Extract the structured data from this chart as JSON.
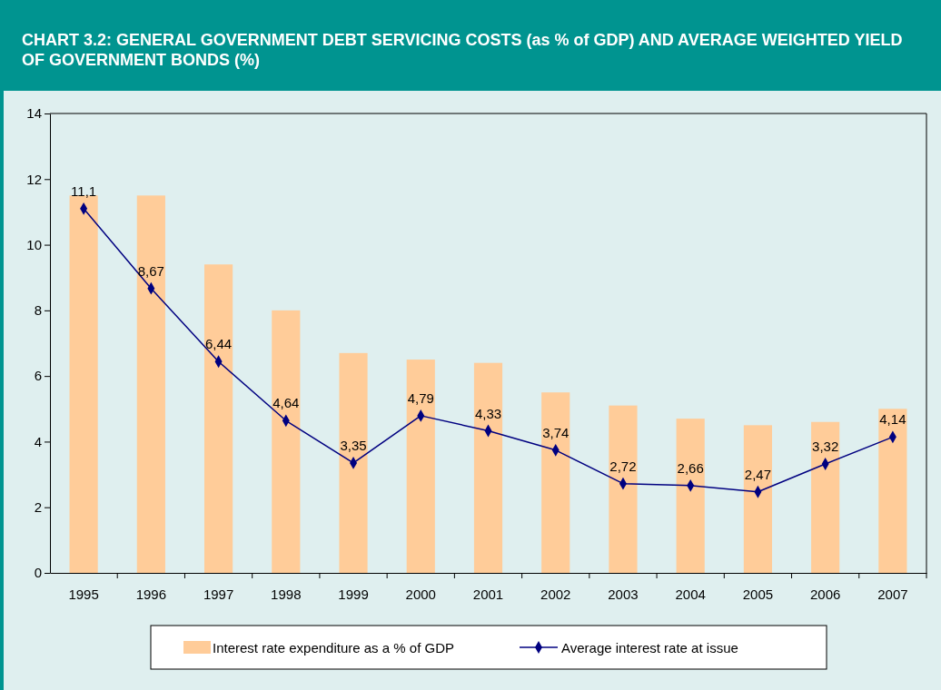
{
  "chart_data": {
    "type": "bar",
    "title": "CHART 3.2: GENERAL GOVERNMENT DEBT SERVICING COSTS (as % of GDP) AND AVERAGE WEIGHTED YIELD OF GOVERNMENT BONDS (%)",
    "categories": [
      "1995",
      "1996",
      "1997",
      "1998",
      "1999",
      "2000",
      "2001",
      "2002",
      "2003",
      "2004",
      "2005",
      "2006",
      "2007"
    ],
    "series": [
      {
        "name": "Interest rate expenditure as a % of GDP",
        "color": "#ffcc99",
        "values": [
          11.5,
          11.5,
          9.4,
          8.0,
          6.7,
          6.5,
          6.4,
          5.5,
          5.1,
          4.7,
          4.5,
          4.6,
          5.0
        ]
      },
      {
        "name": "Average interest rate at issue",
        "type": "line",
        "color": "#000080",
        "marker": "diamond",
        "values": [
          11.1,
          8.67,
          6.44,
          4.64,
          3.35,
          4.79,
          4.33,
          3.74,
          2.72,
          2.66,
          2.47,
          3.32,
          4.14
        ],
        "value_labels": [
          "11,1",
          "8,67",
          "6,44",
          "4,64",
          "3,35",
          "4,79",
          "4,33",
          "3,74",
          "2,72",
          "2,66",
          "2,47",
          "3,32",
          "4,14"
        ]
      }
    ],
    "ylim": [
      0,
      14
    ],
    "yticks": [
      0,
      2,
      4,
      6,
      8,
      10,
      12,
      14
    ],
    "grid": false,
    "legend": "bottom"
  }
}
